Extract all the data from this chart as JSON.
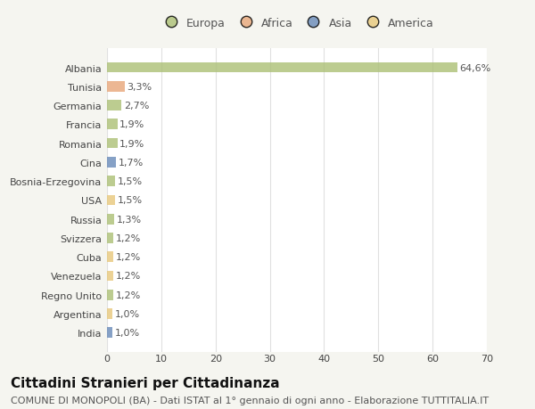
{
  "categories": [
    "Albania",
    "Tunisia",
    "Germania",
    "Francia",
    "Romania",
    "Cina",
    "Bosnia-Erzegovina",
    "USA",
    "Russia",
    "Svizzera",
    "Cuba",
    "Venezuela",
    "Regno Unito",
    "Argentina",
    "India"
  ],
  "values": [
    64.6,
    3.3,
    2.7,
    1.9,
    1.9,
    1.7,
    1.5,
    1.5,
    1.3,
    1.2,
    1.2,
    1.2,
    1.2,
    1.0,
    1.0
  ],
  "labels": [
    "64,6%",
    "3,3%",
    "2,7%",
    "1,9%",
    "1,9%",
    "1,7%",
    "1,5%",
    "1,5%",
    "1,3%",
    "1,2%",
    "1,2%",
    "1,2%",
    "1,2%",
    "1,0%",
    "1,0%"
  ],
  "colors": [
    "#adc178",
    "#e8a87c",
    "#adc178",
    "#adc178",
    "#adc178",
    "#6b8cba",
    "#adc178",
    "#e8c97e",
    "#adc178",
    "#adc178",
    "#e8c97e",
    "#e8c97e",
    "#adc178",
    "#e8c97e",
    "#6b8cba"
  ],
  "legend_labels": [
    "Europa",
    "Africa",
    "Asia",
    "America"
  ],
  "legend_colors": [
    "#adc178",
    "#e8a87c",
    "#6b8cba",
    "#e8c97e"
  ],
  "title": "Cittadini Stranieri per Cittadinanza",
  "subtitle": "COMUNE DI MONOPOLI (BA) - Dati ISTAT al 1° gennaio di ogni anno - Elaborazione TUTTITALIA.IT",
  "xlim": [
    0,
    70
  ],
  "xticks": [
    0,
    10,
    20,
    30,
    40,
    50,
    60,
    70
  ],
  "background_color": "#f5f5f0",
  "plot_bg_color": "#ffffff",
  "grid_color": "#e0e0e0",
  "bar_alpha": 0.82,
  "title_fontsize": 11,
  "subtitle_fontsize": 8,
  "tick_fontsize": 8,
  "label_fontsize": 8
}
